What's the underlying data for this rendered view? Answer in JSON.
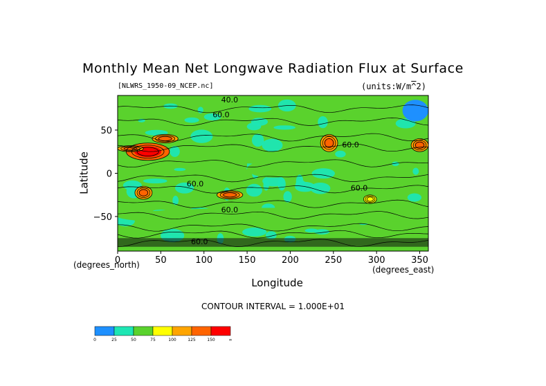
{
  "chart_data": {
    "type": "heatmap",
    "title": "Monthly Mean Net Longwave Radiation Flux at Surface",
    "subtitle_left": "[NLWRS_1950-09_NCEP.nc]",
    "subtitle_right": "(units:W/m^2)",
    "xlabel": "Longitude",
    "ylabel": "Latitude",
    "x_unit_label": "(degrees_east)",
    "y_unit_label": "(degrees_north)",
    "xlim": [
      0,
      360
    ],
    "ylim": [
      -90,
      90
    ],
    "x_ticks": [
      0,
      50,
      100,
      150,
      200,
      250,
      300,
      350
    ],
    "y_ticks": [
      50,
      0,
      -50
    ],
    "footer": "CONTOUR INTERVAL = 1.000E+01",
    "contour_labels": [
      "40.0",
      "60.0",
      "60.0",
      "60.0",
      "60.0",
      "60.0",
      "60.0"
    ],
    "colorbar": {
      "ticks": [
        "0",
        "25",
        "50",
        "75",
        "100",
        "125",
        "150",
        "∞"
      ],
      "colors": [
        "#1e90ff",
        "#1ee6b4",
        "#5ad22d",
        "#ffff00",
        "#ffa500",
        "#ff6400",
        "#ff0000"
      ]
    },
    "field_regions": [
      {
        "lon": [
          100,
          150
        ],
        "lat": [
          -10,
          30
        ],
        "level": 2
      },
      {
        "lon": [
          150,
          210
        ],
        "lat": [
          -5,
          15
        ],
        "level": 2
      },
      {
        "lon": [
          0,
          360
        ],
        "lat": [
          -40,
          -60
        ],
        "level": 2
      },
      {
        "lon": [
          330,
          360
        ],
        "lat": [
          60,
          85
        ],
        "level": 0
      },
      {
        "lon": [
          10,
          60
        ],
        "lat": [
          15,
          35
        ],
        "level": 5
      },
      {
        "lon": [
          0,
          30
        ],
        "lat": [
          25,
          32
        ],
        "level": 4
      },
      {
        "lon": [
          40,
          70
        ],
        "lat": [
          35,
          45
        ],
        "level": 4
      },
      {
        "lon": [
          20,
          40
        ],
        "lat": [
          -15,
          -30
        ],
        "level": 4
      },
      {
        "lon": [
          115,
          145
        ],
        "lat": [
          -20,
          -30
        ],
        "level": 4
      },
      {
        "lon": [
          235,
          255
        ],
        "lat": [
          25,
          45
        ],
        "level": 4
      },
      {
        "lon": [
          285,
          300
        ],
        "lat": [
          -25,
          -35
        ],
        "level": 3
      },
      {
        "lon": [
          340,
          360
        ],
        "lat": [
          25,
          40
        ],
        "level": 4
      }
    ]
  }
}
